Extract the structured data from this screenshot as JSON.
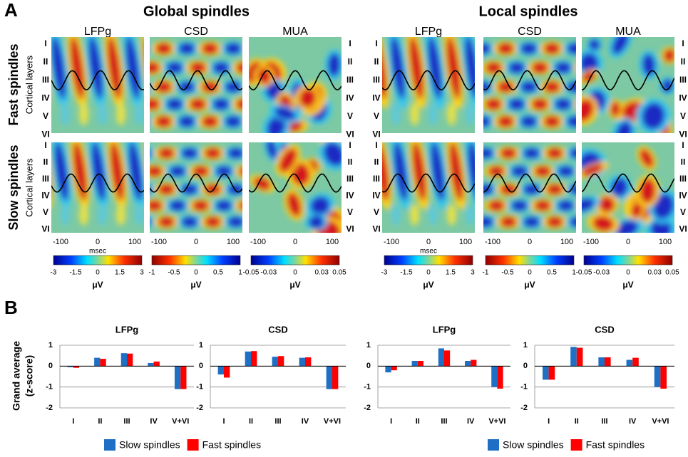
{
  "panel_a_label": "A",
  "panel_b_label": "B",
  "rows": [
    "Fast spindles",
    "Slow spindles"
  ],
  "row_sublabel": "Cortical layers",
  "layers": [
    "I",
    "II",
    "III",
    "IV",
    "V",
    "VI"
  ],
  "time_axis": {
    "xlim": [
      -125,
      125
    ],
    "ticks": [
      -100,
      0,
      100
    ],
    "label": "msec"
  },
  "groups": [
    {
      "title": "Global spindles",
      "columns": [
        "LFPg",
        "CSD",
        "MUA"
      ],
      "colorbars": [
        {
          "colormap": "jet",
          "lim": [
            -3,
            3
          ],
          "ticks": [
            -3,
            -1.5,
            0,
            1.5,
            3
          ],
          "unit": "μV"
        },
        {
          "colormap": "jet_r",
          "lim": [
            -1,
            1
          ],
          "ticks": [
            -1,
            -0.5,
            0,
            0.5,
            1
          ],
          "unit": "μV"
        },
        {
          "colormap": "jet",
          "lim": [
            -0.05,
            0.05
          ],
          "ticks": [
            -0.05,
            -0.03,
            0,
            0.03,
            0.05
          ],
          "unit": "μV"
        }
      ]
    },
    {
      "title": "Local spindles",
      "columns": [
        "LFPg",
        "CSD",
        "MUA"
      ],
      "colorbars": [
        {
          "colormap": "jet",
          "lim": [
            -3,
            3
          ],
          "ticks": [
            -3,
            -1.5,
            0,
            1.5,
            3
          ],
          "unit": "μV"
        },
        {
          "colormap": "jet_r",
          "lim": [
            -1,
            1
          ],
          "ticks": [
            -1,
            -0.5,
            0,
            0.5,
            1
          ],
          "unit": "μV"
        },
        {
          "colormap": "jet",
          "lim": [
            -0.05,
            0.05
          ],
          "ticks": [
            -0.05,
            -0.03,
            0,
            0.03,
            0.05
          ],
          "unit": "μV"
        }
      ]
    }
  ],
  "y_label_lines": [
    "Grand average",
    "(z-score)"
  ],
  "chart_data": [
    {
      "type": "bar",
      "title": "LFPg",
      "categories": [
        "I",
        "II",
        "III",
        "IV",
        "V+VI"
      ],
      "series": [
        {
          "name": "Slow spindles",
          "color": "#1f6fc4",
          "values": [
            -0.05,
            0.4,
            0.62,
            0.15,
            -1.1
          ]
        },
        {
          "name": "Fast spindles",
          "color": "#ff0000",
          "values": [
            -0.08,
            0.35,
            0.6,
            0.22,
            -1.1
          ]
        }
      ],
      "ylim": [
        -2,
        1
      ],
      "yticks": [
        1,
        0,
        -1,
        -2
      ],
      "grid": true
    },
    {
      "type": "bar",
      "title": "CSD",
      "categories": [
        "I",
        "II",
        "III",
        "IV",
        "V+VI"
      ],
      "series": [
        {
          "name": "Slow spindles",
          "color": "#1f6fc4",
          "values": [
            -0.4,
            0.7,
            0.45,
            0.4,
            -1.1
          ]
        },
        {
          "name": "Fast spindles",
          "color": "#ff0000",
          "values": [
            -0.55,
            0.72,
            0.48,
            0.42,
            -1.1
          ]
        }
      ],
      "ylim": [
        -2,
        1
      ],
      "yticks": [
        1,
        0,
        -1,
        -2
      ],
      "grid": true
    },
    {
      "type": "bar",
      "title": "LFPg",
      "categories": [
        "I",
        "II",
        "III",
        "IV",
        "V+VI"
      ],
      "series": [
        {
          "name": "Slow spindles",
          "color": "#1f6fc4",
          "values": [
            -0.3,
            0.25,
            0.85,
            0.25,
            -1.0
          ]
        },
        {
          "name": "Fast spindles",
          "color": "#ff0000",
          "values": [
            -0.2,
            0.25,
            0.75,
            0.3,
            -1.08
          ]
        }
      ],
      "ylim": [
        -2,
        1
      ],
      "yticks": [
        1,
        0,
        -1,
        -2
      ],
      "grid": true
    },
    {
      "type": "bar",
      "title": "CSD",
      "categories": [
        "I",
        "II",
        "III",
        "IV",
        "V+VI"
      ],
      "series": [
        {
          "name": "Slow spindles",
          "color": "#1f6fc4",
          "values": [
            -0.65,
            0.92,
            0.42,
            0.3,
            -1.0
          ]
        },
        {
          "name": "Fast spindles",
          "color": "#ff0000",
          "values": [
            -0.65,
            0.88,
            0.42,
            0.4,
            -1.08
          ]
        }
      ],
      "ylim": [
        -2,
        1
      ],
      "yticks": [
        1,
        0,
        -1,
        -2
      ],
      "grid": true
    }
  ]
}
